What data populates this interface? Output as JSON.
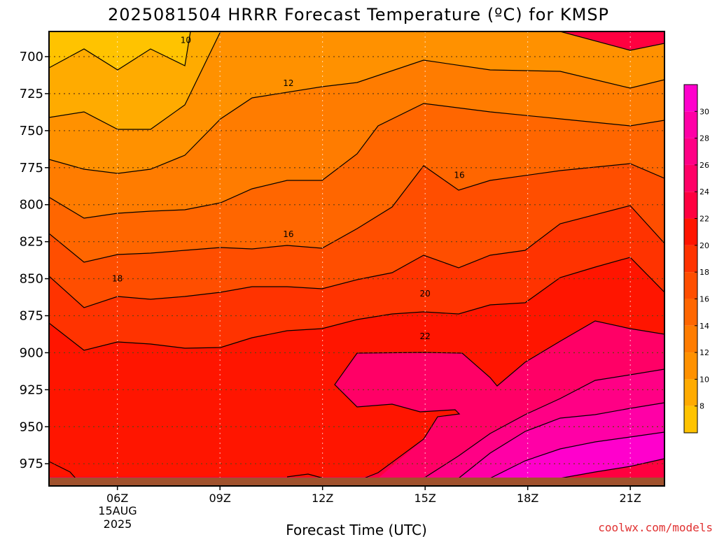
{
  "chart_data": {
    "type": "contour",
    "title": "2025081504 HRRR Forecast Temperature (ºC) for KMSP",
    "xlabel": "Forecast Time (UTC)",
    "ylabel": "",
    "x_ticks": [
      "06Z",
      "09Z",
      "12Z",
      "15Z",
      "18Z",
      "21Z"
    ],
    "x_tick_hours": [
      6,
      9,
      12,
      15,
      18,
      21
    ],
    "x_date_lines": [
      "15AUG",
      "2025"
    ],
    "xlim_hours": [
      4.0,
      22.0
    ],
    "y_ticks": [
      700,
      725,
      750,
      775,
      800,
      825,
      850,
      875,
      900,
      925,
      950,
      975
    ],
    "ylim_hPa": [
      683,
      990
    ],
    "y_scale": "pressure (inverted)",
    "grid": true,
    "ground_pressure_hPa": 984,
    "colorbar": {
      "levels": [
        6,
        8,
        10,
        12,
        14,
        16,
        18,
        20,
        22,
        24,
        26,
        28,
        30,
        32
      ],
      "tick_labels": [
        "8",
        "10",
        "12",
        "14",
        "16",
        "18",
        "20",
        "22",
        "24",
        "26",
        "28",
        "30"
      ],
      "tick_values": [
        8,
        10,
        12,
        14,
        16,
        18,
        20,
        22,
        24,
        26,
        28,
        30
      ],
      "colors": [
        "#ffc300",
        "#ffab00",
        "#ff9100",
        "#ff7c00",
        "#ff6600",
        "#ff4e00",
        "#ff3300",
        "#ff1500",
        "#ff0040",
        "#ff0066",
        "#ff0085",
        "#ff00a6",
        "#ff00cc"
      ]
    },
    "contour_labels": [
      {
        "text": "10",
        "hour": 8.0,
        "p": 689
      },
      {
        "text": "12",
        "hour": 11.0,
        "p": 718
      },
      {
        "text": "16",
        "hour": 16.0,
        "p": 780
      },
      {
        "text": "16",
        "hour": 11.0,
        "p": 820
      },
      {
        "text": "18",
        "hour": 6.0,
        "p": 850
      },
      {
        "text": "20",
        "hour": 15.0,
        "p": 860
      },
      {
        "text": "22",
        "hour": 15.0,
        "p": 889
      }
    ]
  },
  "credit": "coolwx.com/models"
}
